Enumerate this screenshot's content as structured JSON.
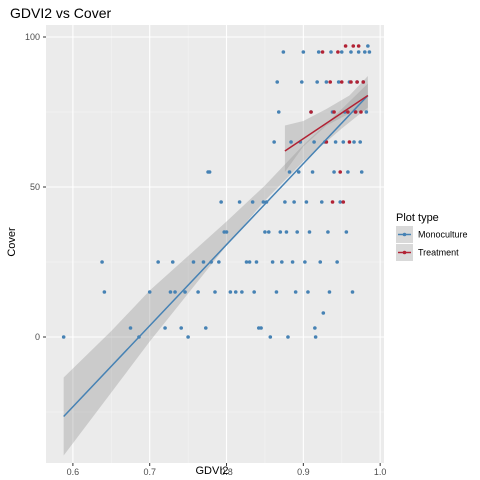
{
  "chart_data": {
    "type": "scatter",
    "title": "GDVI2 vs Cover",
    "xlabel": "GDVI2",
    "ylabel": "Cover",
    "xlim": [
      0.565,
      1.005
    ],
    "ylim": [
      -42,
      104
    ],
    "x_ticks": [
      0.6,
      0.7,
      0.8,
      0.9,
      1.0
    ],
    "x_tick_labels": [
      "0.6",
      "0.7",
      "0.8",
      "0.9",
      "1.0"
    ],
    "y_ticks": [
      0,
      50,
      100
    ],
    "y_tick_labels": [
      "0",
      "50",
      "100"
    ],
    "grid": true,
    "background": "#EBEBEB",
    "legend": {
      "title": "Plot type",
      "position": "right",
      "entries": [
        {
          "label": "Monoculture",
          "color": "#4682B4"
        },
        {
          "label": "Treatment",
          "color": "#B22234"
        }
      ]
    },
    "series": [
      {
        "name": "Monoculture",
        "color": "#4682B4",
        "points": [
          [
            0.588,
            0
          ],
          [
            0.638,
            25
          ],
          [
            0.641,
            15
          ],
          [
            0.675,
            3
          ],
          [
            0.686,
            0
          ],
          [
            0.7,
            15
          ],
          [
            0.711,
            25
          ],
          [
            0.72,
            3
          ],
          [
            0.727,
            15
          ],
          [
            0.73,
            25
          ],
          [
            0.733,
            15
          ],
          [
            0.741,
            3
          ],
          [
            0.746,
            15
          ],
          [
            0.75,
            0
          ],
          [
            0.757,
            25
          ],
          [
            0.763,
            15
          ],
          [
            0.77,
            25
          ],
          [
            0.773,
            3
          ],
          [
            0.776,
            55
          ],
          [
            0.778,
            55
          ],
          [
            0.78,
            25
          ],
          [
            0.785,
            15
          ],
          [
            0.79,
            25
          ],
          [
            0.793,
            45
          ],
          [
            0.797,
            35
          ],
          [
            0.8,
            35
          ],
          [
            0.805,
            15
          ],
          [
            0.812,
            15
          ],
          [
            0.817,
            45
          ],
          [
            0.82,
            15
          ],
          [
            0.826,
            25
          ],
          [
            0.83,
            25
          ],
          [
            0.834,
            45
          ],
          [
            0.836,
            15
          ],
          [
            0.839,
            25
          ],
          [
            0.842,
            3
          ],
          [
            0.845,
            3
          ],
          [
            0.848,
            45
          ],
          [
            0.85,
            35
          ],
          [
            0.852,
            45
          ],
          [
            0.855,
            35
          ],
          [
            0.857,
            0
          ],
          [
            0.86,
            25
          ],
          [
            0.862,
            65
          ],
          [
            0.865,
            15
          ],
          [
            0.866,
            85
          ],
          [
            0.868,
            75
          ],
          [
            0.87,
            35
          ],
          [
            0.872,
            25
          ],
          [
            0.874,
            95
          ],
          [
            0.876,
            45
          ],
          [
            0.878,
            35
          ],
          [
            0.88,
            0
          ],
          [
            0.882,
            55
          ],
          [
            0.884,
            65
          ],
          [
            0.886,
            25
          ],
          [
            0.888,
            45
          ],
          [
            0.89,
            15
          ],
          [
            0.892,
            35
          ],
          [
            0.894,
            55
          ],
          [
            0.896,
            65
          ],
          [
            0.898,
            85
          ],
          [
            0.9,
            95
          ],
          [
            0.902,
            25
          ],
          [
            0.904,
            45
          ],
          [
            0.906,
            15
          ],
          [
            0.908,
            35
          ],
          [
            0.91,
            75
          ],
          [
            0.912,
            55
          ],
          [
            0.914,
            65
          ],
          [
            0.915,
            3
          ],
          [
            0.916,
            0
          ],
          [
            0.918,
            85
          ],
          [
            0.92,
            95
          ],
          [
            0.922,
            25
          ],
          [
            0.924,
            45
          ],
          [
            0.926,
            8
          ],
          [
            0.928,
            65
          ],
          [
            0.93,
            85
          ],
          [
            0.932,
            35
          ],
          [
            0.934,
            15
          ],
          [
            0.936,
            95
          ],
          [
            0.938,
            75
          ],
          [
            0.94,
            55
          ],
          [
            0.942,
            65
          ],
          [
            0.944,
            25
          ],
          [
            0.946,
            85
          ],
          [
            0.948,
            45
          ],
          [
            0.95,
            95
          ],
          [
            0.952,
            65
          ],
          [
            0.954,
            75
          ],
          [
            0.956,
            35
          ],
          [
            0.958,
            55
          ],
          [
            0.96,
            85
          ],
          [
            0.962,
            95
          ],
          [
            0.964,
            15
          ],
          [
            0.966,
            65
          ],
          [
            0.968,
            75
          ],
          [
            0.97,
            85
          ],
          [
            0.972,
            95
          ],
          [
            0.974,
            65
          ],
          [
            0.976,
            55
          ],
          [
            0.978,
            85
          ],
          [
            0.98,
            95
          ],
          [
            0.982,
            75
          ],
          [
            0.984,
            97
          ],
          [
            0.986,
            95
          ]
        ]
      },
      {
        "name": "Treatment",
        "color": "#B22234",
        "points": [
          [
            0.91,
            75
          ],
          [
            0.925,
            95
          ],
          [
            0.93,
            65
          ],
          [
            0.935,
            85
          ],
          [
            0.938,
            45
          ],
          [
            0.94,
            75
          ],
          [
            0.945,
            95
          ],
          [
            0.948,
            55
          ],
          [
            0.95,
            85
          ],
          [
            0.952,
            45
          ],
          [
            0.955,
            97
          ],
          [
            0.958,
            75
          ],
          [
            0.96,
            65
          ],
          [
            0.962,
            85
          ],
          [
            0.965,
            97
          ],
          [
            0.968,
            75
          ],
          [
            0.97,
            85
          ],
          [
            0.972,
            97
          ],
          [
            0.975,
            75
          ],
          [
            0.978,
            85
          ]
        ]
      }
    ],
    "fits": [
      {
        "name": "Monoculture",
        "color": "#4682B4",
        "x": [
          0.588,
          0.984
        ],
        "y": [
          -26.5,
          80.5
        ],
        "band": [
          [
            0.588,
            -39.5,
            -13.5
          ],
          [
            0.65,
            -18.5,
            2.0
          ],
          [
            0.7,
            -1.5,
            15.5
          ],
          [
            0.75,
            14.5,
            27.0
          ],
          [
            0.8,
            30.5,
            38.5
          ],
          [
            0.85,
            45.5,
            50.5
          ],
          [
            0.9,
            58.5,
            64.0
          ],
          [
            0.95,
            69.5,
            76.0
          ],
          [
            0.984,
            76.5,
            84.5
          ]
        ]
      },
      {
        "name": "Treatment",
        "color": "#B22234",
        "x": [
          0.876,
          0.984
        ],
        "y": [
          62.0,
          80.5
        ],
        "band": [
          [
            0.876,
            55.0,
            70.5
          ],
          [
            0.9,
            63.5,
            72.0
          ],
          [
            0.93,
            70.5,
            76.0
          ],
          [
            0.96,
            74.5,
            80.5
          ],
          [
            0.984,
            75.5,
            87.0
          ]
        ]
      }
    ]
  }
}
